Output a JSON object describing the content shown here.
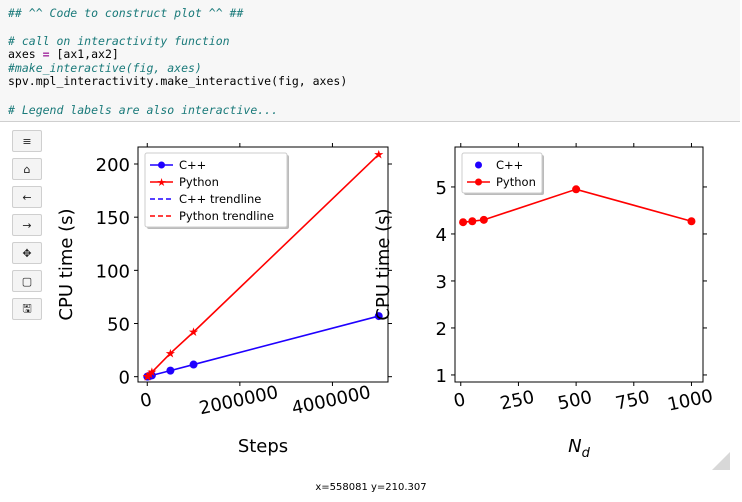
{
  "code": {
    "lines": [
      {
        "type": "comment",
        "text": "## ^^ Code to construct plot ^^ ##"
      },
      {
        "type": "blank",
        "text": ""
      },
      {
        "type": "comment",
        "text": "# call on interactivity function"
      },
      {
        "type": "assign",
        "lhs": "axes ",
        "op": "=",
        "rhs": " [ax1,ax2]"
      },
      {
        "type": "comment",
        "text": "#make_interactive(fig, axes)"
      },
      {
        "type": "plain",
        "text": "spv.mpl_interactivity.make_interactive(fig, axes)"
      },
      {
        "type": "blank",
        "text": ""
      },
      {
        "type": "comment",
        "text": "# Legend labels are also interactive..."
      }
    ]
  },
  "toolbar": {
    "buttons": [
      {
        "name": "menu-icon",
        "glyph": "≡"
      },
      {
        "name": "home-icon",
        "glyph": "⌂"
      },
      {
        "name": "back-icon",
        "glyph": "←"
      },
      {
        "name": "forward-icon",
        "glyph": "→"
      },
      {
        "name": "pan-icon",
        "glyph": "✥"
      },
      {
        "name": "zoom-rect-icon",
        "glyph": "▢"
      },
      {
        "name": "save-icon",
        "glyph": "🖫"
      }
    ]
  },
  "status_text": "x=558081 y=210.307",
  "colors": {
    "cpp": "#1f00ff",
    "python": "#ff0000"
  },
  "chart_data": [
    {
      "type": "line",
      "xlabel": "Steps",
      "ylabel": "CPU time (s)",
      "xlim": [
        -200000,
        5200000
      ],
      "ylim": [
        -5,
        216
      ],
      "xticks": [
        0,
        2000000,
        4000000
      ],
      "xticklabels": [
        "0",
        "2000000",
        "4000000"
      ],
      "yticks": [
        0,
        50,
        100,
        150,
        200
      ],
      "yticklabels": [
        "0",
        "50",
        "100",
        "150",
        "200"
      ],
      "legend_loc": "top-left",
      "series": [
        {
          "name": "C++",
          "marker": "circle",
          "color": "#1f00ff",
          "style": "solid",
          "x": [
            1000,
            10000,
            50000,
            100000,
            500000,
            1000000,
            5000000
          ],
          "y": [
            0.1,
            0.12,
            0.6,
            1.2,
            5.7,
            11.4,
            57
          ]
        },
        {
          "name": "Python",
          "marker": "star",
          "color": "#ff0000",
          "style": "solid",
          "x": [
            1000,
            10000,
            50000,
            100000,
            500000,
            1000000,
            5000000
          ],
          "y": [
            0.2,
            0.4,
            2.1,
            4.2,
            22,
            42,
            209
          ]
        },
        {
          "name": "C++ trendline",
          "color": "#1f00ff",
          "style": "dashed",
          "x": [],
          "y": []
        },
        {
          "name": "Python trendline",
          "color": "#ff0000",
          "style": "dashed",
          "x": [],
          "y": []
        }
      ]
    },
    {
      "type": "line",
      "xlabel": "N_d",
      "ylabel": "CPU time (s)",
      "xlim": [
        -25,
        1050
      ],
      "ylim": [
        0.85,
        5.85
      ],
      "xticks": [
        0,
        250,
        500,
        750,
        1000
      ],
      "xticklabels": [
        "0",
        "250",
        "500",
        "750",
        "1000"
      ],
      "yticks": [
        1,
        2,
        3,
        4,
        5
      ],
      "yticklabels": [
        "1",
        "2",
        "3",
        "4",
        "5"
      ],
      "legend_loc": "top-left",
      "series": [
        {
          "name": "C++",
          "marker": "circle",
          "color": "#1f00ff",
          "style": "none",
          "x": [],
          "y": []
        },
        {
          "name": "Python",
          "marker": "circle",
          "color": "#ff0000",
          "style": "solid",
          "x": [
            10,
            50,
            100,
            500,
            1000
          ],
          "y": [
            4.25,
            4.27,
            4.3,
            4.95,
            4.27
          ]
        }
      ]
    }
  ]
}
